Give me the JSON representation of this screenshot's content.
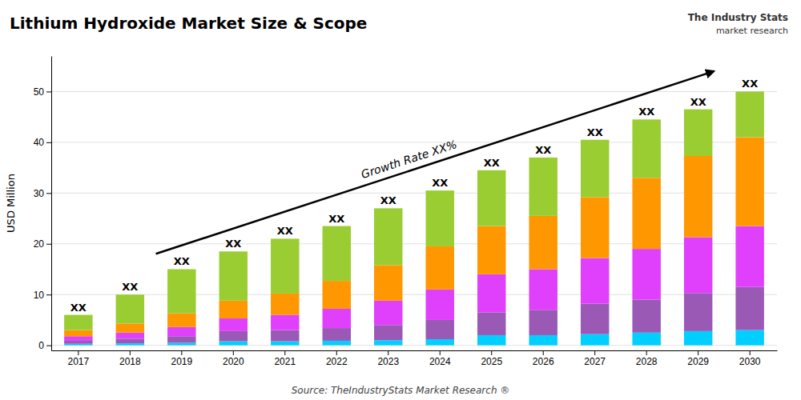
{
  "chart_data": {
    "type": "bar",
    "stacked": true,
    "title": "Lithium Hydroxide Market Size & Scope",
    "ylabel": "USD Million",
    "source": "Source: TheIndustryStats Market Research ®",
    "logo": [
      "The Industry Stats",
      "market research"
    ],
    "annotation": "Growth Rate XX%",
    "categories": [
      "2017",
      "2018",
      "2019",
      "2020",
      "2021",
      "2022",
      "2023",
      "2024",
      "2025",
      "2026",
      "2027",
      "2028",
      "2029",
      "2030"
    ],
    "series": [
      {
        "color": "#00cfff",
        "values": [
          0.3,
          0.4,
          0.5,
          0.8,
          0.8,
          0.9,
          1.0,
          1.2,
          2.0,
          2.0,
          2.2,
          2.5,
          2.8,
          3.0
        ]
      },
      {
        "color": "#9b59b6",
        "values": [
          0.6,
          0.9,
          1.3,
          2.0,
          2.2,
          2.5,
          3.0,
          3.8,
          4.5,
          5.0,
          6.0,
          6.5,
          7.5,
          8.5
        ]
      },
      {
        "color": "#e040fb",
        "values": [
          0.9,
          1.2,
          1.8,
          2.5,
          3.0,
          3.8,
          4.8,
          6.0,
          7.5,
          8.0,
          9.0,
          10.0,
          11.0,
          12.0
        ]
      },
      {
        "color": "#ff9800",
        "values": [
          1.2,
          1.8,
          2.7,
          3.5,
          4.2,
          5.5,
          7.0,
          8.5,
          9.5,
          10.5,
          12.0,
          14.0,
          16.0,
          17.5
        ]
      },
      {
        "color": "#9acd32",
        "values": [
          3.0,
          5.7,
          8.7,
          9.7,
          10.8,
          10.8,
          11.2,
          11.0,
          11.0,
          11.5,
          11.3,
          11.5,
          9.2,
          9.0
        ]
      }
    ],
    "total_labels": [
      "XX",
      "XX",
      "XX",
      "XX",
      "XX",
      "XX",
      "XX",
      "XX",
      "XX",
      "XX",
      "XX",
      "XX",
      "XX",
      "XX"
    ],
    "ylim": [
      -1,
      57
    ],
    "yticks": [
      0,
      10,
      20,
      30,
      40,
      50
    ],
    "grid": true
  }
}
